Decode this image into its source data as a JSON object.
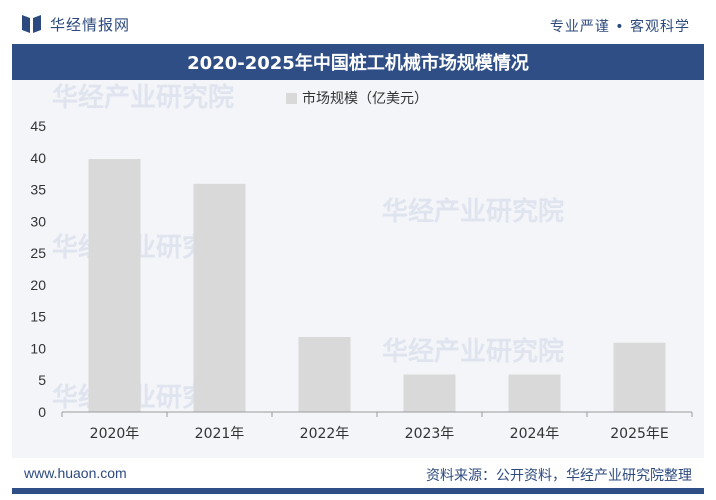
{
  "header": {
    "logo_text": "华经情报网",
    "slogan": "专业严谨 • 客观科学"
  },
  "chart_data": {
    "type": "bar",
    "title": "2020-2025年中国桩工机械市场规模情况",
    "categories": [
      "2020年",
      "2021年",
      "2022年",
      "2023年",
      "2024年",
      "2025年E"
    ],
    "series": [
      {
        "name": "市场规模（亿美元）",
        "values": [
          39.8,
          35.9,
          11.8,
          5.9,
          5.9,
          10.9
        ]
      }
    ],
    "ylim": [
      0,
      45
    ],
    "yticks": [
      0,
      5,
      10,
      15,
      20,
      25,
      30,
      35,
      40,
      45
    ],
    "legend_position": "top-center",
    "grid": false,
    "colors": {
      "bar": "#d9d9d9",
      "title_bg": "#2f4e86",
      "brand": "#2d4a7e"
    }
  },
  "watermark": "华经产业研究院",
  "footer": {
    "url": "www.huaon.com",
    "source": "资料来源：公开资料，华经产业研究院整理"
  }
}
